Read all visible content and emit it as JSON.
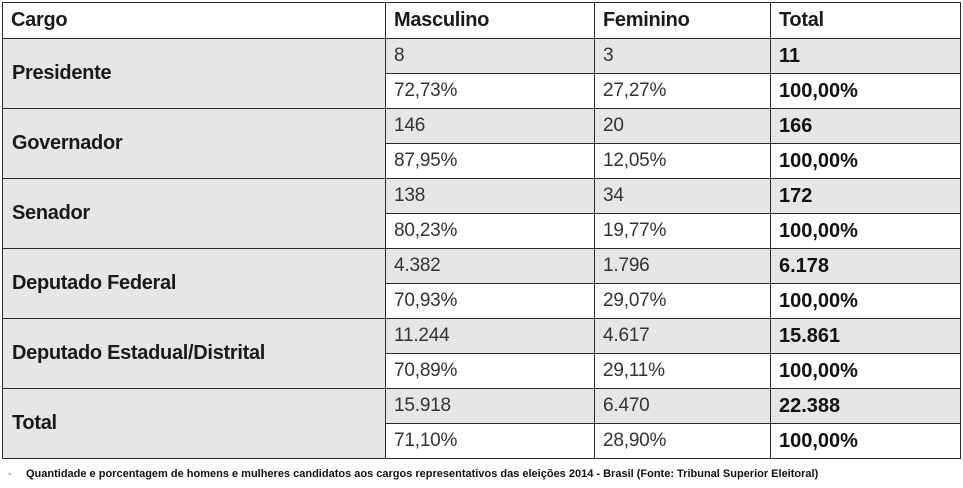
{
  "table": {
    "headers": {
      "cargo": "Cargo",
      "masculino": "Masculino",
      "feminino": "Feminino",
      "total": "Total"
    },
    "rows": [
      {
        "cargo": "Presidente",
        "masc_n": "8",
        "fem_n": "3",
        "total_n": "11",
        "masc_p": "72,73%",
        "fem_p": "27,27%",
        "total_p": "100,00%"
      },
      {
        "cargo": "Governador",
        "masc_n": "146",
        "fem_n": "20",
        "total_n": "166",
        "masc_p": "87,95%",
        "fem_p": "12,05%",
        "total_p": "100,00%"
      },
      {
        "cargo": "Senador",
        "masc_n": "138",
        "fem_n": "34",
        "total_n": "172",
        "masc_p": "80,23%",
        "fem_p": "19,77%",
        "total_p": "100,00%"
      },
      {
        "cargo": "Deputado Federal",
        "masc_n": "4.382",
        "fem_n": "1.796",
        "total_n": "6.178",
        "masc_p": "70,93%",
        "fem_p": "29,07%",
        "total_p": "100,00%"
      },
      {
        "cargo": "Deputado Estadual/Distrital",
        "masc_n": "11.244",
        "fem_n": "4.617",
        "total_n": "15.861",
        "masc_p": "70,89%",
        "fem_p": "29,11%",
        "total_p": "100,00%"
      },
      {
        "cargo": "Total",
        "masc_n": "15.918",
        "fem_n": "6.470",
        "total_n": "22.388",
        "masc_p": "71,10%",
        "fem_p": "28,90%",
        "total_p": "100,00%"
      }
    ]
  },
  "caption": {
    "text": "Quantidade e porcentagem de homens e mulheres candidatos aos cargos representativos das eleições 2014 - Brasil (Fonte: Tribunal Superior Eleitoral)"
  }
}
